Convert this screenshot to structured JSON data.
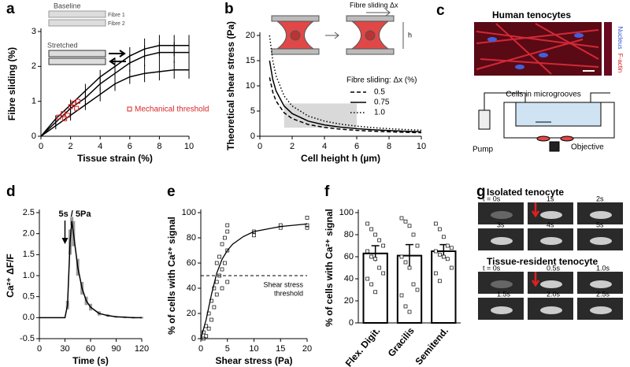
{
  "chart_data": [
    {
      "type": "line",
      "panel_label": "a",
      "x_label": "Tissue strain (%)",
      "y_label": "Fibre sliding (%)",
      "inset_texts": [
        "Baseline",
        "Fibre 1",
        "Fibre 2",
        "Stretched"
      ],
      "xlim": [
        0,
        10
      ],
      "ylim": [
        0,
        3
      ],
      "xticks": [
        0,
        2,
        4,
        6,
        8,
        10
      ],
      "yticks": [
        0,
        1,
        2,
        3
      ],
      "x": [
        0,
        1,
        2,
        3,
        4,
        5,
        6,
        7,
        8,
        9,
        10
      ],
      "series": [
        {
          "color": "#000000",
          "values": [
            0,
            0.5,
            0.9,
            1.3,
            1.7,
            2.0,
            2.3,
            2.5,
            2.6,
            2.6,
            2.6
          ],
          "errors": [
            0,
            0.1,
            0.15,
            0.2,
            0.2,
            0.25,
            0.25,
            0.3,
            0.3,
            0.3,
            0.3
          ]
        },
        {
          "color": "#000000",
          "values": [
            0,
            0.4,
            0.8,
            1.1,
            1.5,
            1.8,
            2.1,
            2.3,
            2.4,
            2.4,
            2.4
          ],
          "errors": [
            0,
            0.1,
            0.15,
            0.2,
            0.2,
            0.25,
            0.25,
            0.3,
            0.3,
            0.3,
            0.3
          ]
        },
        {
          "color": "#000000",
          "values": [
            0,
            0.3,
            0.6,
            0.9,
            1.2,
            1.5,
            1.7,
            1.8,
            1.85,
            1.9,
            1.9
          ],
          "errors": [
            0,
            0.1,
            0.15,
            0.15,
            0.2,
            0.2,
            0.2,
            0.25,
            0.25,
            0.25,
            0.25
          ]
        },
        {
          "name": "Mechanical threshold",
          "type": "scatter",
          "color": "#d62728",
          "x": [
            1.2,
            1.5,
            1.6,
            1.8,
            2.0,
            2.2,
            2.4,
            2.5
          ],
          "values": [
            0.55,
            0.65,
            0.5,
            0.6,
            0.85,
            0.95,
            0.8,
            1.0
          ]
        }
      ]
    },
    {
      "type": "line",
      "panel_label": "b",
      "x_label": "Cell height h (µm)",
      "y_label": "Theoretical shear stress (Pa)",
      "inset_texts": [
        "Fibre sliding Δx",
        "h"
      ],
      "legend_title": "Fibre sliding: Δx (%)",
      "xlim": [
        0,
        10
      ],
      "ylim": [
        0,
        20
      ],
      "xticks": [
        0,
        2,
        4,
        6,
        8,
        10
      ],
      "yticks": [
        0,
        5,
        10,
        15,
        20
      ],
      "shaded_region": {
        "x": [
          1.5,
          6
        ],
        "y": [
          1.7,
          6.5
        ],
        "color": "#d9d9d9"
      },
      "x": [
        0.6,
        0.8,
        1,
        1.5,
        2,
        3,
        4,
        5,
        6,
        7,
        8,
        9,
        10
      ],
      "series": [
        {
          "name": "0.5",
          "dash": "dashed",
          "color": "#000000",
          "values": [
            11.67,
            8.75,
            7,
            4.67,
            3.5,
            2.33,
            1.75,
            1.4,
            1.17,
            1,
            0.88,
            0.78,
            0.7
          ]
        },
        {
          "name": "0.75",
          "dash": "solid",
          "color": "#000000",
          "values": [
            15,
            11.25,
            9,
            6,
            4.5,
            3,
            2.25,
            1.8,
            1.5,
            1.29,
            1.13,
            1,
            0.9
          ]
        },
        {
          "name": "1.0",
          "dash": "dotted",
          "color": "#000000",
          "values": [
            20,
            15,
            12,
            8,
            6,
            4,
            3,
            2.4,
            2,
            1.71,
            1.5,
            1.33,
            1.2
          ]
        }
      ]
    },
    {
      "type": "line",
      "panel_label": "d",
      "x_label": "Time (s)",
      "y_label": "Ca²⁺ ΔF/F",
      "annotation": "5s / 5Pa",
      "annotation_x": 30,
      "xlim": [
        0,
        120
      ],
      "ylim": [
        -0.5,
        2.5
      ],
      "xticks": [
        0,
        30,
        60,
        90,
        120
      ],
      "yticks": [
        -0.5,
        {
          "value": 0,
          "label": "0.0"
        },
        0.5,
        {
          "value": 1,
          "label": "1.0"
        },
        1.5,
        {
          "value": 2,
          "label": "2.0"
        },
        2.5
      ],
      "x": [
        0,
        10,
        20,
        30,
        33,
        36,
        38,
        40,
        45,
        50,
        55,
        60,
        70,
        80,
        90,
        100,
        110,
        120
      ],
      "series": [
        {
          "color": "#000000",
          "band_color": "#9a9a9a",
          "values": [
            0,
            0,
            0,
            0,
            0.3,
            1.8,
            2.3,
            2.0,
            1.2,
            0.7,
            0.4,
            0.25,
            0.1,
            0.05,
            0.02,
            0.01,
            0,
            0
          ],
          "errors": [
            0,
            0,
            0,
            0,
            0.1,
            0.3,
            0.1,
            0.3,
            0.2,
            0.15,
            0.1,
            0.08,
            0.05,
            0.03,
            0.02,
            0.02,
            0.02,
            0.02
          ]
        }
      ]
    },
    {
      "type": "scatter",
      "panel_label": "e",
      "x_label": "Shear stress (Pa)",
      "y_label": "% of cells with Ca²⁺ signal",
      "threshold": {
        "value": 50,
        "label": [
          "Shear stress",
          "threshold"
        ]
      },
      "xlim": [
        0,
        20
      ],
      "ylim": [
        0,
        100
      ],
      "xticks": [
        0,
        5,
        10,
        15,
        20
      ],
      "yticks": [
        0,
        20,
        40,
        60,
        80,
        100
      ],
      "x": [
        0.5,
        0.5,
        1,
        1,
        1.5,
        1.5,
        2,
        2,
        2.5,
        2.5,
        3,
        3,
        3,
        3.5,
        3.5,
        4,
        4,
        4,
        4.5,
        4.5,
        5,
        5,
        5,
        5,
        10,
        10,
        15,
        15,
        20,
        20,
        20
      ],
      "values": [
        0,
        5,
        2,
        10,
        20,
        8,
        30,
        15,
        40,
        25,
        60,
        45,
        35,
        65,
        50,
        55,
        75,
        40,
        80,
        60,
        85,
        70,
        90,
        45,
        85,
        82,
        90,
        88,
        90,
        96,
        88
      ],
      "fit": {
        "x": [
          0,
          1,
          2,
          3,
          4,
          5,
          6,
          8,
          10,
          15,
          20
        ],
        "values": [
          0,
          15,
          35,
          52,
          63,
          70,
          75,
          81,
          85,
          89,
          91
        ]
      }
    },
    {
      "type": "bar",
      "panel_label": "f",
      "y_label": "% of cells with Ca²⁺ signal",
      "categories": [
        "Flex. Digit.",
        "Gracilis",
        "Semitend."
      ],
      "values": [
        63,
        61,
        65
      ],
      "errors": [
        7,
        10,
        6
      ],
      "points": [
        [
          90,
          85,
          80,
          75,
          70,
          65,
          60,
          58,
          50,
          45,
          40,
          35,
          28
        ],
        [
          95,
          92,
          88,
          80,
          70,
          60,
          55,
          50,
          35,
          30,
          25,
          15,
          10
        ],
        [
          90,
          85,
          78,
          70,
          68,
          65,
          62,
          60,
          58,
          50,
          45,
          38
        ]
      ],
      "ylim": [
        0,
        100
      ],
      "yticks": [
        0,
        20,
        40,
        60,
        80,
        100
      ]
    }
  ],
  "panel_c": {
    "label": "c",
    "title": "Human tenocytes",
    "stain_labels": [
      "Nucleus",
      "F-actin"
    ],
    "diagram_labels": [
      "Cells in microgrooves",
      "Pump",
      "Objective"
    ]
  },
  "panel_g": {
    "label": "g",
    "groups": [
      {
        "title": "Isolated tenocyte",
        "frames": [
          "t = 0s",
          "1s",
          "2s",
          "3s",
          "4s",
          "5s"
        ]
      },
      {
        "title": "Tissue-resident tenocyte",
        "frames": [
          "t = 0s",
          "0.5s",
          "1.0s",
          "1.5s",
          "2.0s",
          "2.5s"
        ]
      }
    ]
  }
}
